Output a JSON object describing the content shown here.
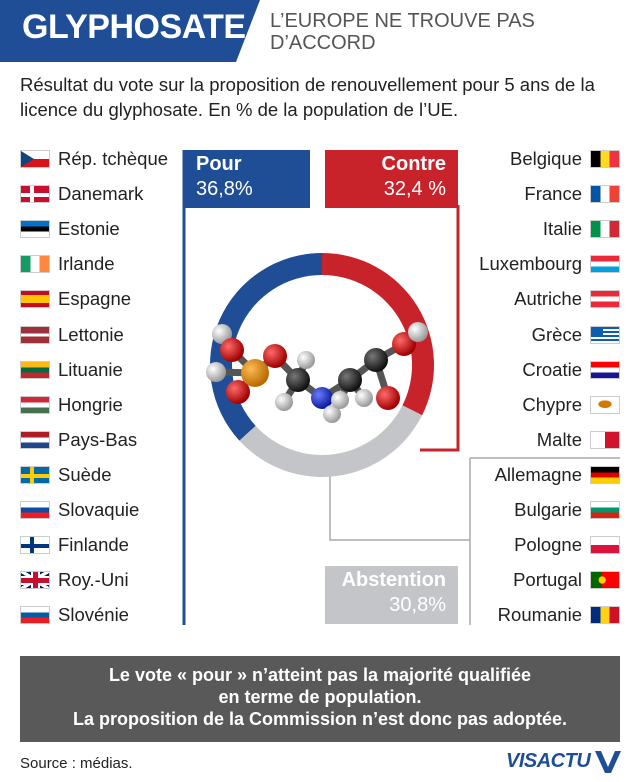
{
  "header": {
    "title": "GLYPHOSATE",
    "subtitle": "L’EUROPE NE TROUVE PAS D’ACCORD",
    "intro": "Résultat du vote sur la proposition de renouvellement pour 5 ans de la licence du glyphosate. En % de la population de l’UE."
  },
  "chart_data": {
    "type": "donut",
    "title": "Résultat du vote sur la proposition de renouvellement pour 5 ans de la licence du glyphosate",
    "unit": "% de la population de l’UE",
    "slices": [
      {
        "label": "Pour",
        "value": 36.8,
        "display": "36,8%",
        "color": "#1f4e97"
      },
      {
        "label": "Contre",
        "value": 32.4,
        "display": "32,4 %",
        "color": "#c8232b"
      },
      {
        "label": "Abstention",
        "value": 30.8,
        "display": "30,8%",
        "color": "#c3c5c8"
      }
    ]
  },
  "groups": {
    "pour": [
      "Rép. tchèque",
      "Danemark",
      "Estonie",
      "Irlande",
      "Espagne",
      "Lettonie",
      "Lituanie",
      "Hongrie",
      "Pays-Bas",
      "Suède",
      "Slovaquie",
      "Finlande",
      "Roy.-Uni",
      "Slovénie"
    ],
    "contre": [
      "Belgique",
      "France",
      "Italie",
      "Luxembourg",
      "Autriche",
      "Grèce",
      "Croatie",
      "Chypre",
      "Malte"
    ],
    "abstention": [
      "Allemagne",
      "Bulgarie",
      "Pologne",
      "Portugal",
      "Roumanie"
    ]
  },
  "colors": {
    "pour": "#1f4e97",
    "contre": "#c8232b",
    "abstention": "#c3c5c8",
    "banner": "#595959"
  },
  "conclusion": {
    "line1": "Le vote « pour » n’atteint pas la majorité qualifiée",
    "line2": "en terme de population.",
    "line3": "La proposition de la Commission n’est donc pas adoptée."
  },
  "footer": {
    "source": "Source : médias.",
    "logo": "VISACTU"
  }
}
